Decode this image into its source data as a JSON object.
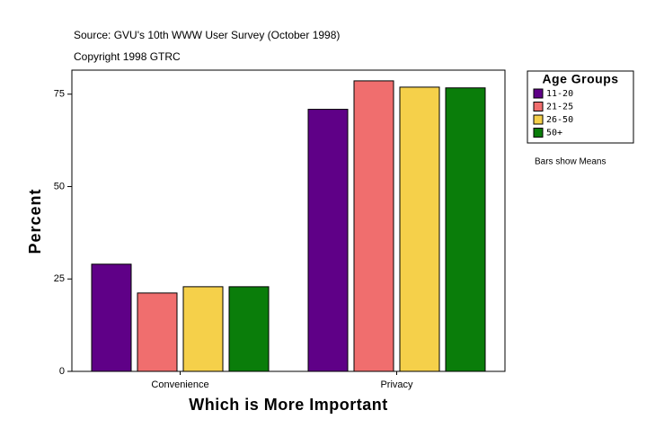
{
  "chart_data": {
    "type": "bar",
    "title": "Source: GVU's 10th WWW User Survey (October 1998)",
    "subtitle": "Copyright 1998 GTRC",
    "x_label": "Which is More Important",
    "y_label": "Percent",
    "legend_title": "Age Groups",
    "annotation": "Bars show Means",
    "categories": [
      "Convenience",
      "Privacy"
    ],
    "series": [
      {
        "name": "11-20",
        "color": "#5f0087",
        "values": [
          29.0,
          70.9
        ]
      },
      {
        "name": "21-25",
        "color": "#f06e6e",
        "values": [
          21.2,
          78.6
        ]
      },
      {
        "name": "26-50",
        "color": "#f5d04a",
        "values": [
          22.9,
          76.9
        ]
      },
      {
        "name": "50+",
        "color": "#0a7d0a",
        "values": [
          22.9,
          76.7
        ]
      }
    ],
    "ylim": [
      0,
      81.5
    ],
    "yticks": [
      0,
      25,
      50,
      75
    ],
    "grid": false,
    "legend": "right"
  }
}
